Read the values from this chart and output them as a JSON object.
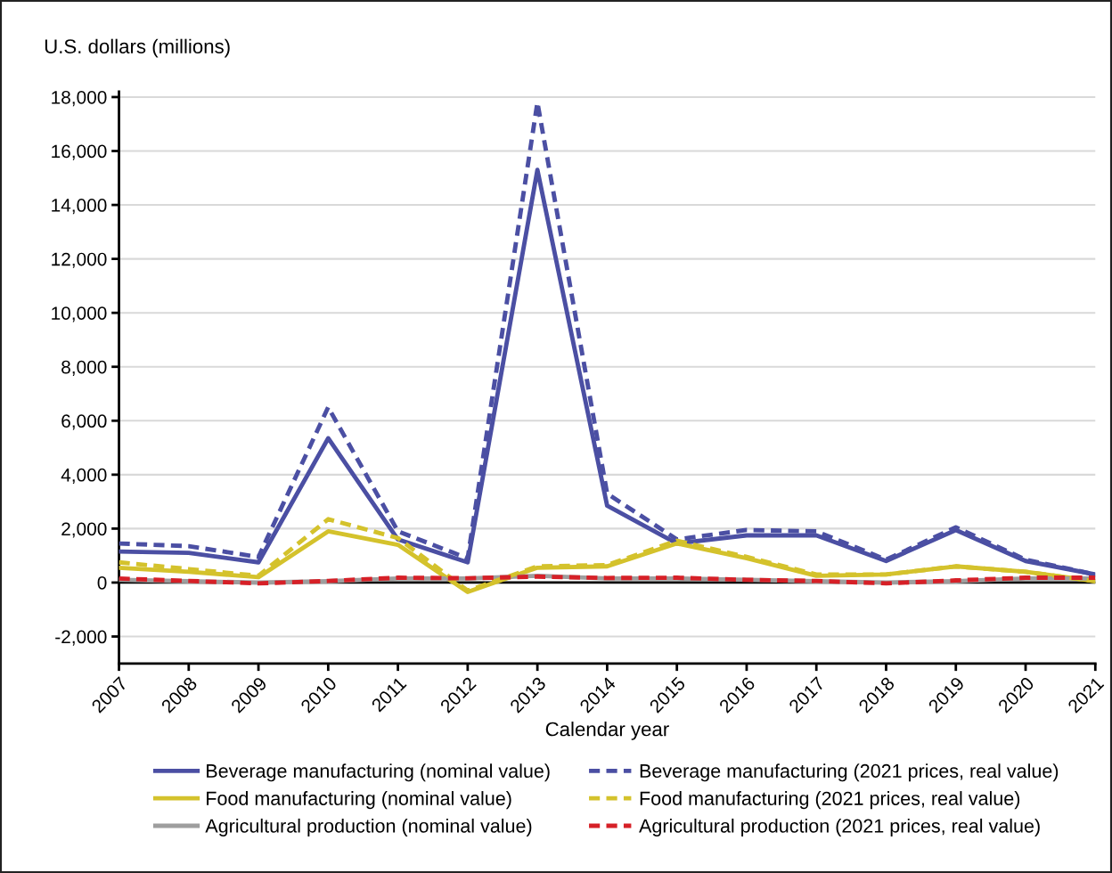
{
  "chart_data": {
    "type": "line",
    "ylabel": "U.S. dollars (millions)",
    "xlabel": "Calendar year",
    "x": [
      2007,
      2008,
      2009,
      2010,
      2011,
      2012,
      2013,
      2014,
      2015,
      2016,
      2017,
      2018,
      2019,
      2020,
      2021
    ],
    "series": [
      {
        "name": "Beverage manufacturing (nominal value)",
        "color": "#4b4fa3",
        "line_style": "solid",
        "values": [
          1150,
          1100,
          750,
          5350,
          1600,
          750,
          15300,
          2850,
          1450,
          1750,
          1750,
          800,
          1950,
          800,
          300
        ]
      },
      {
        "name": "Food manufacturing (nominal value)",
        "color": "#d4c22c",
        "line_style": "solid",
        "values": [
          550,
          400,
          200,
          1900,
          1400,
          -350,
          550,
          600,
          1450,
          900,
          250,
          300,
          600,
          400,
          50
        ]
      },
      {
        "name": "Agricultural production (nominal value)",
        "color": "#9e9e9e",
        "line_style": "solid",
        "values": [
          100,
          50,
          0,
          50,
          150,
          150,
          250,
          150,
          150,
          100,
          50,
          0,
          50,
          150,
          150
        ]
      },
      {
        "name": "Beverage manufacturing (2021 prices, real value)",
        "color": "#4b4fa3",
        "line_style": "dashed",
        "values": [
          1450,
          1350,
          950,
          6500,
          1900,
          900,
          17800,
          3300,
          1600,
          1950,
          1900,
          850,
          2050,
          850,
          300
        ]
      },
      {
        "name": "Food manufacturing (2021 prices, real value)",
        "color": "#d4c22c",
        "line_style": "dashed",
        "values": [
          750,
          500,
          250,
          2350,
          1650,
          -300,
          600,
          650,
          1550,
          950,
          300,
          300,
          600,
          400,
          50
        ]
      },
      {
        "name": "Agricultural production (2021 prices, real value)",
        "color": "#d62027",
        "line_style": "dashed",
        "values": [
          150,
          60,
          -30,
          60,
          180,
          160,
          220,
          170,
          180,
          100,
          60,
          -30,
          80,
          180,
          180
        ]
      }
    ],
    "xlim": [
      2007,
      2021
    ],
    "xticks": [
      2007,
      2008,
      2009,
      2010,
      2011,
      2012,
      2013,
      2014,
      2015,
      2016,
      2017,
      2018,
      2019,
      2020,
      2021
    ],
    "ylim": [
      -3000,
      18200
    ],
    "yticks": [
      {
        "value": -2000,
        "label": "-2,000"
      },
      0,
      {
        "value": 2000,
        "label": "2,000"
      },
      {
        "value": 4000,
        "label": "4,000"
      },
      {
        "value": 6000,
        "label": "6,000"
      },
      {
        "value": 8000,
        "label": "8,000"
      },
      {
        "value": 10000,
        "label": "10,000"
      },
      {
        "value": 12000,
        "label": "12,000"
      },
      {
        "value": 14000,
        "label": "14,000"
      },
      {
        "value": 16000,
        "label": "16,000"
      },
      {
        "value": 18000,
        "label": "18,000"
      }
    ],
    "ref_lines": [
      {
        "axis": "y",
        "value": 0,
        "color": "#000000",
        "line_style": "solid"
      }
    ],
    "grid": "y",
    "legend": "bottom",
    "marker": "none"
  }
}
